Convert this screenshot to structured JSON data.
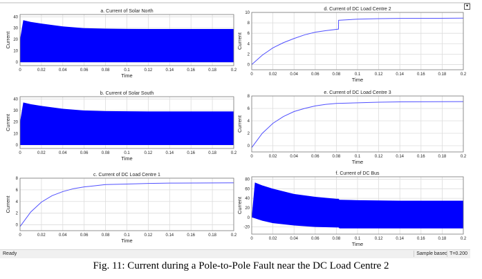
{
  "status": {
    "ready": "Ready",
    "mode": "Sample based",
    "time": "T=0.200"
  },
  "caption": "Fig. 11: Current during a Pole-to-Pole Fault near the DC Load Centre 2",
  "colors": {
    "trace": "#0000ff",
    "line": "#4f4fff",
    "grid": "#dcdcdc"
  },
  "chart_data": [
    {
      "type": "area",
      "title": "a. Current of Solar North",
      "xlabel": "Time",
      "ylabel": "Current",
      "xlim": [
        0,
        0.2
      ],
      "ylim": [
        -3,
        42
      ],
      "xticks": [
        "0",
        "0.02",
        "0.04",
        "0.06",
        "0.08",
        "0.1",
        "0.12",
        "0.14",
        "0.16",
        "0.18",
        "0.2"
      ],
      "yticks": [
        0,
        10,
        20,
        30,
        40
      ],
      "x": [
        0,
        0.003,
        0.01,
        0.02,
        0.04,
        0.06,
        0.08,
        0.1,
        0.12,
        0.14,
        0.16,
        0.18,
        0.2
      ],
      "upper": [
        20,
        37,
        35.5,
        34,
        31.5,
        30,
        29.5,
        29.3,
        29.2,
        29.2,
        29.2,
        29.2,
        29.2
      ],
      "lower": [
        0,
        0,
        0,
        0,
        0,
        0,
        0,
        0,
        0,
        0,
        0,
        0,
        0
      ]
    },
    {
      "type": "line",
      "title": "d. Current of DC Load Centre 2",
      "xlabel": "Time",
      "ylabel": "Current",
      "xlim": [
        0,
        0.2
      ],
      "ylim": [
        -1,
        10
      ],
      "xticks": [
        "0",
        "0.02",
        "0.04",
        "0.06",
        "0.08",
        "0.1",
        "0.12",
        "0.14",
        "0.16",
        "0.18",
        "0.2"
      ],
      "yticks": [
        0,
        2,
        4,
        6,
        8,
        10
      ],
      "x": [
        0,
        0.01,
        0.02,
        0.03,
        0.04,
        0.05,
        0.06,
        0.07,
        0.082,
        0.0821,
        0.1,
        0.12,
        0.14,
        0.2
      ],
      "y": [
        0,
        1.8,
        3.2,
        4.2,
        5.0,
        5.7,
        6.2,
        6.5,
        6.8,
        8.5,
        8.7,
        8.8,
        8.85,
        8.9
      ]
    },
    {
      "type": "area",
      "title": "b. Current of Solar South",
      "xlabel": "Time",
      "ylabel": "Current",
      "xlim": [
        0,
        0.2
      ],
      "ylim": [
        -3,
        42
      ],
      "xticks": [
        "0",
        "0.02",
        "0.04",
        "0.06",
        "0.08",
        "0.1",
        "0.12",
        "0.14",
        "0.16",
        "0.18",
        "0.2"
      ],
      "yticks": [
        0,
        10,
        20,
        30,
        40
      ],
      "x": [
        0,
        0.003,
        0.01,
        0.02,
        0.04,
        0.06,
        0.08,
        0.1,
        0.12,
        0.14,
        0.16,
        0.18,
        0.2
      ],
      "upper": [
        20,
        37,
        35.5,
        34,
        31.5,
        30,
        29.5,
        29.3,
        29.2,
        29.2,
        29.2,
        29.2,
        29.2
      ],
      "lower": [
        0,
        0,
        0,
        0,
        0,
        0,
        0,
        0,
        0,
        0,
        0,
        0,
        0
      ]
    },
    {
      "type": "line",
      "title": "e. Current of DC Load Centre 3",
      "xlabel": "Time",
      "ylabel": "Current",
      "xlim": [
        0,
        0.2
      ],
      "ylim": [
        -1,
        8
      ],
      "xticks": [
        "0",
        "0.02",
        "0.04",
        "0.06",
        "0.08",
        "0.1",
        "0.12",
        "0.14",
        "0.16",
        "0.18",
        "0.2"
      ],
      "yticks": [
        0,
        2,
        4,
        6,
        8
      ],
      "x": [
        0,
        0.01,
        0.02,
        0.03,
        0.04,
        0.05,
        0.06,
        0.07,
        0.08,
        0.1,
        0.12,
        0.14,
        0.2
      ],
      "y": [
        -0.3,
        2.0,
        3.6,
        4.7,
        5.5,
        6.0,
        6.4,
        6.65,
        6.8,
        6.9,
        7.0,
        7.05,
        7.1
      ]
    },
    {
      "type": "line",
      "title": "c. Current of DC Load Centre 1",
      "xlabel": "Time",
      "ylabel": "Current",
      "xlim": [
        0,
        0.2
      ],
      "ylim": [
        -1,
        8
      ],
      "xticks": [
        "0",
        "0.02",
        "0.04",
        "0.06",
        "0.08",
        "0.1",
        "0.12",
        "0.14",
        "0.16",
        "0.18",
        "0.2"
      ],
      "yticks": [
        0,
        2,
        4,
        6,
        8
      ],
      "x": [
        0,
        0.01,
        0.02,
        0.03,
        0.04,
        0.05,
        0.06,
        0.07,
        0.08,
        0.1,
        0.12,
        0.14,
        0.2
      ],
      "y": [
        -0.3,
        2.2,
        3.9,
        5.0,
        5.7,
        6.2,
        6.5,
        6.7,
        6.9,
        7.0,
        7.1,
        7.15,
        7.2
      ]
    },
    {
      "type": "area",
      "title": "f. Current of DC Bus",
      "xlabel": "Time",
      "ylabel": "Current",
      "xlim": [
        0,
        0.2
      ],
      "ylim": [
        -35,
        85
      ],
      "xticks": [
        "0",
        "0.02",
        "0.04",
        "0.06",
        "0.08",
        "0.1",
        "0.12",
        "0.14",
        "0.16",
        "0.18",
        "0.2"
      ],
      "yticks": [
        -20,
        0,
        20,
        40,
        60,
        80
      ],
      "x": [
        0,
        0.003,
        0.01,
        0.02,
        0.04,
        0.06,
        0.08,
        0.082,
        0.083,
        0.1,
        0.12,
        0.14,
        0.2
      ],
      "upper": [
        0,
        73,
        67,
        60,
        49,
        43,
        39,
        39,
        37,
        36,
        35.5,
        35,
        35
      ],
      "lower": [
        0,
        -2,
        -7,
        -12,
        -17,
        -20,
        -21,
        -21,
        -23,
        -23,
        -23,
        -23,
        -23
      ]
    }
  ]
}
